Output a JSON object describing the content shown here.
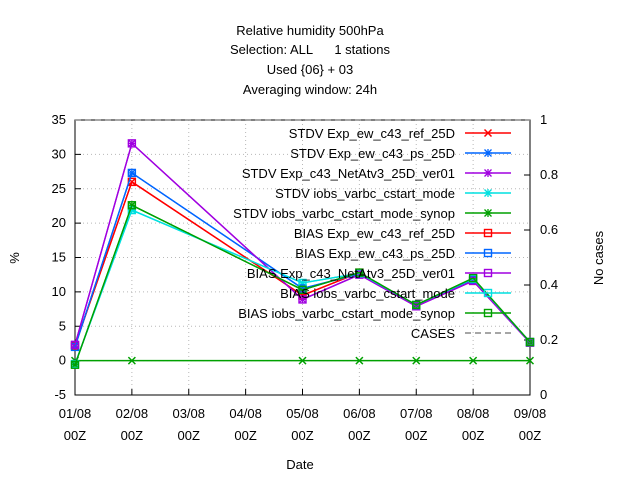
{
  "title_lines": [
    "Relative humidity 500hPa",
    "Selection: ALL      1 stations",
    "Used {06} + 03",
    "Averaging window: 24h"
  ],
  "chart_data": {
    "type": "line",
    "xlabel": "Date",
    "ylabel": "%",
    "y2label": "No cases",
    "x_ticks": [
      {
        "line1": "01/08",
        "line2": "00Z"
      },
      {
        "line1": "02/08",
        "line2": "00Z"
      },
      {
        "line1": "03/08",
        "line2": "00Z"
      },
      {
        "line1": "04/08",
        "line2": "00Z"
      },
      {
        "line1": "05/08",
        "line2": "00Z"
      },
      {
        "line1": "06/08",
        "line2": "00Z"
      },
      {
        "line1": "07/08",
        "line2": "00Z"
      },
      {
        "line1": "08/08",
        "line2": "00Z"
      },
      {
        "line1": "09/08",
        "line2": "00Z"
      }
    ],
    "xlim": [
      0,
      8
    ],
    "ylim": [
      -5,
      35
    ],
    "y_ticks": [
      -5,
      0,
      5,
      10,
      15,
      20,
      25,
      30,
      35
    ],
    "y2lim": [
      0,
      1
    ],
    "y2_ticks": [
      "0",
      "0.2",
      "0.4",
      "0.6",
      "0.8",
      "1"
    ],
    "grid": true,
    "legend_position": "top-right",
    "series": [
      {
        "name": "STDV Exp_ew_c43_ref_25D",
        "color": "#ff0000",
        "marker": "x",
        "x": [
          0,
          1,
          4,
          5,
          6,
          7,
          8
        ],
        "y": [
          2.2,
          26.0,
          9.5,
          12.8,
          8.0,
          11.6,
          2.7
        ]
      },
      {
        "name": "STDV Exp_ew_c43_ps_25D",
        "color": "#0066ff",
        "marker": "star",
        "x": [
          0,
          1,
          4,
          5,
          6,
          7,
          8
        ],
        "y": [
          2.0,
          27.3,
          10.5,
          12.6,
          8.0,
          11.7,
          2.7
        ]
      },
      {
        "name": "STDV Exp_c43_NetAtv3_25D_ver01",
        "color": "#a000e0",
        "marker": "star",
        "x": [
          0,
          1,
          4,
          5,
          6,
          7,
          8
        ],
        "y": [
          2.3,
          31.6,
          8.9,
          12.5,
          7.9,
          11.6,
          2.6
        ]
      },
      {
        "name": "STDV iobs_varbc_cstart_mode",
        "color": "#00e0e0",
        "marker": "star",
        "x": [
          0,
          1,
          4,
          5,
          6,
          7,
          8
        ],
        "y": [
          -0.5,
          21.9,
          11.3,
          12.7,
          8.1,
          11.9,
          2.7
        ]
      },
      {
        "name": "STDV iobs_varbc_cstart_mode_synop",
        "color": "#00a000",
        "marker": "star",
        "x": [
          0,
          1,
          4,
          5,
          6,
          7,
          8
        ],
        "y": [
          -0.6,
          22.6,
          10.3,
          12.8,
          8.1,
          12.0,
          2.7
        ]
      },
      {
        "name": "BIAS Exp_ew_c43_ref_25D",
        "color": "#ff0000",
        "marker": "square",
        "x": [
          0,
          1,
          4,
          5,
          6,
          7,
          8
        ],
        "y": [
          2.2,
          26.0,
          9.5,
          12.8,
          8.0,
          11.6,
          2.7
        ]
      },
      {
        "name": "BIAS Exp_ew_c43_ps_25D",
        "color": "#0066ff",
        "marker": "square",
        "x": [
          0,
          1,
          4,
          5,
          6,
          7,
          8
        ],
        "y": [
          2.0,
          27.3,
          10.5,
          12.6,
          8.0,
          11.7,
          2.7
        ]
      },
      {
        "name": "BIAS Exp_c43_NetAtv3_25D_ver01",
        "color": "#a000e0",
        "marker": "square",
        "x": [
          0,
          1,
          4,
          5,
          6,
          7,
          8
        ],
        "y": [
          2.3,
          31.6,
          8.9,
          12.5,
          7.9,
          11.6,
          2.6
        ]
      },
      {
        "name": "BIAS iobs_varbc_cstart_mode",
        "color": "#00e0e0",
        "marker": "square",
        "x": [
          0,
          1,
          4,
          5,
          6,
          7,
          8
        ],
        "y": [
          -0.5,
          21.9,
          11.3,
          12.7,
          8.1,
          11.9,
          2.7
        ]
      },
      {
        "name": "BIAS iobs_varbc_cstart_mode_synop",
        "color": "#00a000",
        "marker": "square",
        "x": [
          0,
          1,
          4,
          5,
          6,
          7,
          8
        ],
        "y": [
          -0.6,
          22.6,
          10.3,
          12.8,
          8.1,
          12.0,
          2.7
        ]
      },
      {
        "name": "CASES",
        "color": "#888888",
        "marker": "none",
        "dashed": true,
        "axis": "y2",
        "x": [
          0,
          1,
          4,
          5,
          6,
          7,
          8
        ],
        "y": [
          1,
          1,
          1,
          1,
          1,
          1,
          1
        ]
      }
    ],
    "zero_line": {
      "color": "#00a000",
      "marker": "x",
      "x": [
        0,
        1,
        4,
        5,
        6,
        7,
        8
      ],
      "y": [
        0,
        0,
        0,
        0,
        0,
        0,
        0
      ]
    }
  }
}
